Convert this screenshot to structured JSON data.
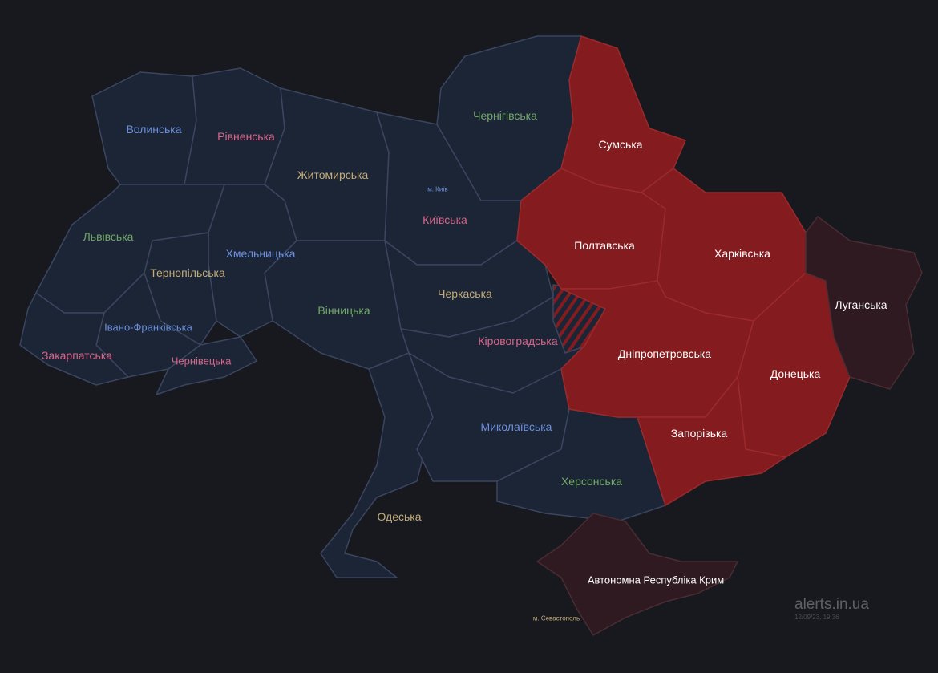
{
  "colors": {
    "background": "#17191e",
    "calm": "#1c2536",
    "alert": "#841b1e",
    "occupied": "#2e1a20"
  },
  "regions": [
    {
      "name": "Волинська",
      "status": "calm"
    },
    {
      "name": "Рівненська",
      "status": "calm"
    },
    {
      "name": "Житомирська",
      "status": "calm"
    },
    {
      "name": "Київська",
      "status": "calm"
    },
    {
      "name": "Чернігівська",
      "status": "calm"
    },
    {
      "name": "Сумська",
      "status": "alert"
    },
    {
      "name": "Полтавська",
      "status": "alert"
    },
    {
      "name": "Харківська",
      "status": "alert"
    },
    {
      "name": "Луганська",
      "status": "occupied"
    },
    {
      "name": "Донецька",
      "status": "alert"
    },
    {
      "name": "Дніпропетровська",
      "status": "alert"
    },
    {
      "name": "Запорізька",
      "status": "alert"
    },
    {
      "name": "Черкаська",
      "status": "calm"
    },
    {
      "name": "Кіровоградська",
      "status": "calm"
    },
    {
      "name": "Вінницька",
      "status": "calm"
    },
    {
      "name": "Хмельницька",
      "status": "calm"
    },
    {
      "name": "Тернопільська",
      "status": "calm"
    },
    {
      "name": "Львівська",
      "status": "calm"
    },
    {
      "name": "Івано-Франківська",
      "status": "calm"
    },
    {
      "name": "Закарпатська",
      "status": "calm"
    },
    {
      "name": "Чернівецька",
      "status": "calm"
    },
    {
      "name": "Одеська",
      "status": "calm"
    },
    {
      "name": "Миколаївська",
      "status": "calm"
    },
    {
      "name": "Херсонська",
      "status": "calm"
    },
    {
      "name": "Автономна Республіка Крим",
      "status": "occupied"
    }
  ],
  "cities": {
    "kyiv": "м. Київ",
    "sevastopol": "м. Севастополь"
  },
  "footer": {
    "brand": "alerts.in.ua",
    "timestamp": "12/09/23, 19:36"
  }
}
